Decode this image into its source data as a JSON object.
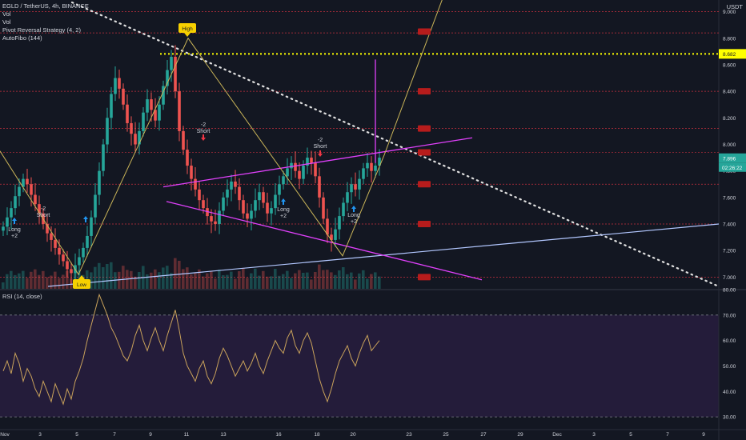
{
  "legend": {
    "symbol": "EGLD / TetherUS, 4h, BINANCE",
    "line2": "Vol",
    "line3": "Vol",
    "line4": "Pivot Reversal Strategy (4, 2)",
    "line5": "AutoFibo (144)"
  },
  "rsi_legend": "RSI (14, close)",
  "unit": "USDT",
  "colors": {
    "background": "#131722",
    "up": "#26a69a",
    "down": "#ef5350",
    "fib": "#f23645",
    "yellow_level": "#ffff00",
    "channel": "#e040fb",
    "zigzag": "#c9b458",
    "rsi_band": "#241c3a"
  },
  "chart_data": [
    {
      "type": "candlestick",
      "title": "EGLD / TetherUS, 4h, BINANCE",
      "ylim": [
        6.9,
        9.1
      ],
      "y_ticks": [
        "9.000",
        "8.800",
        "8.600",
        "8.400",
        "8.200",
        "8.000",
        "7.800",
        "7.600",
        "7.400",
        "7.200",
        "7.000"
      ],
      "x_ticks": [
        "Nov",
        "3",
        "5",
        "7",
        "9",
        "11",
        "13",
        "16",
        "18",
        "20",
        "23",
        "25",
        "27",
        "29",
        "Dec",
        "3",
        "5",
        "7",
        "9"
      ],
      "close_series": [
        7.38,
        7.45,
        7.52,
        7.61,
        7.68,
        7.74,
        7.7,
        7.62,
        7.55,
        7.48,
        7.4,
        7.33,
        7.28,
        7.22,
        7.17,
        7.12,
        7.06,
        7.03,
        7.09,
        7.15,
        7.22,
        7.31,
        7.45,
        7.62,
        7.8,
        8.0,
        8.2,
        8.38,
        8.5,
        8.42,
        8.3,
        8.16,
        8.08,
        8.0,
        8.1,
        8.24,
        8.34,
        8.26,
        8.18,
        8.3,
        8.44,
        8.56,
        8.66,
        8.4,
        8.1,
        7.96,
        7.84,
        7.74,
        7.66,
        7.58,
        7.52,
        7.46,
        7.42,
        7.4,
        7.5,
        7.6,
        7.66,
        7.72,
        7.68,
        7.58,
        7.48,
        7.44,
        7.5,
        7.58,
        7.64,
        7.56,
        7.48,
        7.52,
        7.62,
        7.7,
        7.76,
        7.82,
        7.86,
        7.8,
        7.74,
        7.84,
        7.9,
        7.86,
        7.76,
        7.6,
        7.44,
        7.32,
        7.28,
        7.36,
        7.46,
        7.56,
        7.64,
        7.7,
        7.66,
        7.74,
        7.82,
        7.86,
        7.8,
        7.84,
        7.9
      ],
      "price_labels": [
        {
          "text": "8.682",
          "value": 8.682,
          "color": "#ffff00"
        },
        {
          "text": "7.896",
          "value": 7.896,
          "color": "#26a69a"
        }
      ],
      "countdown": "02:26:22",
      "fib_levels": [
        9.0,
        8.84,
        8.4,
        8.12,
        7.94,
        7.7,
        7.4,
        7.0
      ],
      "markers": [
        {
          "text": "High",
          "type": "flag"
        },
        {
          "text": "Low",
          "type": "flag"
        },
        {
          "text": "-2\nShort",
          "type": "short"
        },
        {
          "text": "-2\nShort",
          "type": "short"
        },
        {
          "text": "-2\nShort",
          "type": "short"
        },
        {
          "text": "Long\n+2",
          "type": "long"
        },
        {
          "text": "Long\n+2",
          "type": "long"
        },
        {
          "text": "Long\n+2",
          "type": "long"
        }
      ]
    },
    {
      "type": "line",
      "title": "RSI (14, close)",
      "ylim": [
        25,
        80
      ],
      "y_ticks": [
        "80.00",
        "70.00",
        "60.00",
        "50.00",
        "40.00",
        "30.00"
      ],
      "overbought": 70,
      "oversold": 30,
      "values": [
        48,
        52,
        47,
        55,
        51,
        44,
        49,
        46,
        41,
        38,
        44,
        40,
        36,
        43,
        39,
        35,
        41,
        37,
        44,
        48,
        53,
        60,
        66,
        72,
        78,
        74,
        70,
        65,
        62,
        58,
        54,
        52,
        56,
        62,
        66,
        60,
        56,
        61,
        65,
        60,
        56,
        62,
        67,
        72,
        64,
        55,
        50,
        47,
        44,
        49,
        52,
        46,
        43,
        47,
        53,
        57,
        54,
        50,
        46,
        49,
        52,
        48,
        51,
        55,
        50,
        47,
        52,
        56,
        60,
        57,
        55,
        61,
        64,
        58,
        55,
        60,
        63,
        59,
        52,
        45,
        40,
        36,
        41,
        47,
        52,
        55,
        58,
        53,
        50,
        55,
        59,
        62,
        56,
        58,
        60
      ]
    }
  ]
}
